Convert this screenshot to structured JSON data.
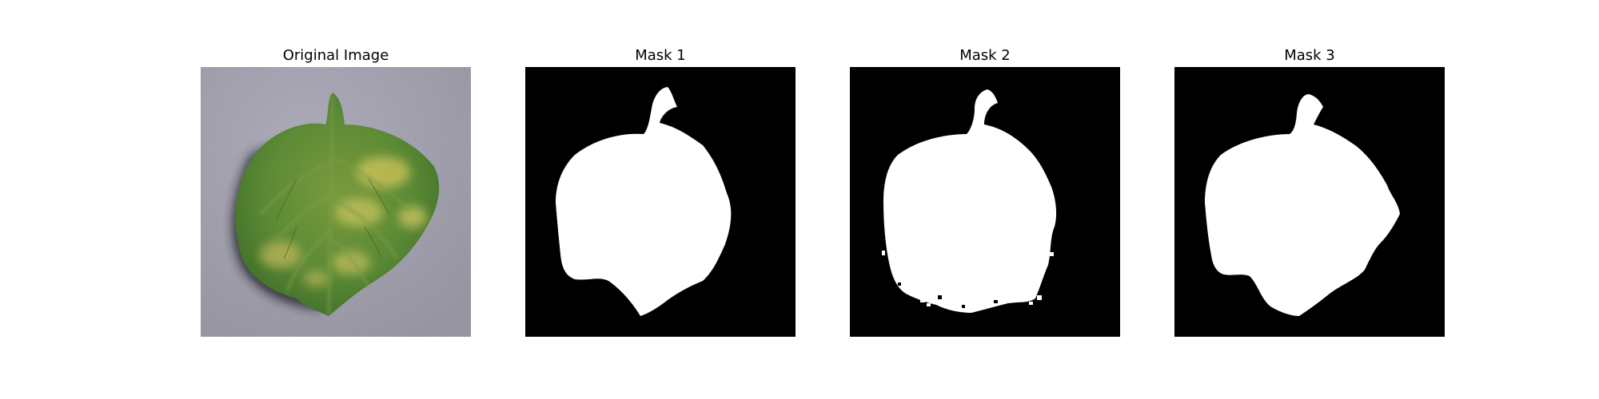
{
  "panels": [
    {
      "title": "Original Image",
      "kind": "photo"
    },
    {
      "title": "Mask 1",
      "kind": "mask"
    },
    {
      "title": "Mask 2",
      "kind": "mask"
    },
    {
      "title": "Mask 3",
      "kind": "mask"
    }
  ],
  "colors": {
    "background": "#ffffff",
    "mask_background": "#000000",
    "mask_foreground": "#ffffff",
    "leaf_green": "#5f8a34",
    "surface_gray": "#9a98a8"
  }
}
